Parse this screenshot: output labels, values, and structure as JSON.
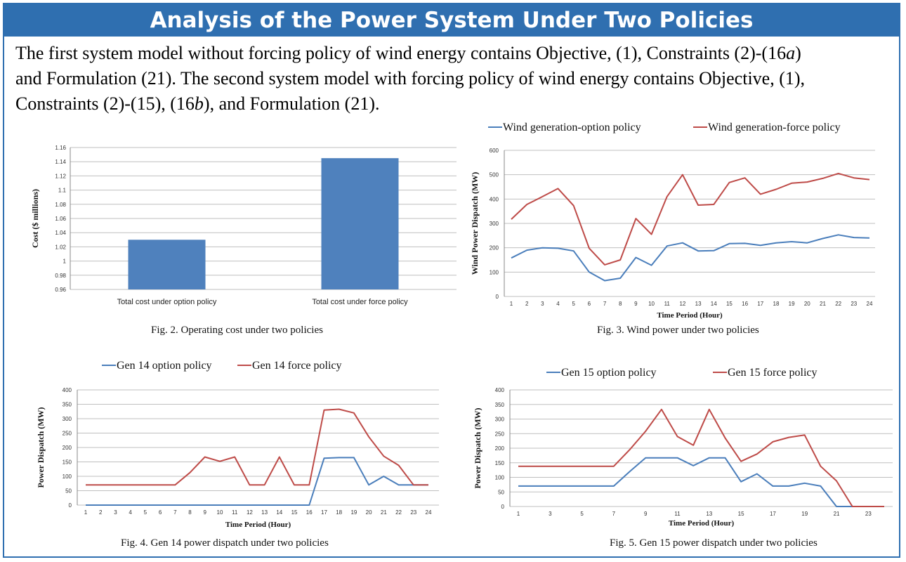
{
  "banner": {
    "title": "Analysis of the Power System Under Two Policies"
  },
  "intro": {
    "line1a": "The first system model without forcing policy of wind energy contains Objective, (1), Constraints (2)-(16",
    "line1sym": "a",
    "line1b": ")",
    "line2a": "and Formulation (21).  The second system model with forcing policy of wind energy contains Objective, (1),",
    "line3a": "Constraints (2)-(15), (16",
    "line3sym": "b",
    "line3b": "), and Formulation (21)."
  },
  "captions": {
    "fig2": "Fig. 2.  Operating cost under two policies",
    "fig3": "Fig. 3.  Wind power under two policies",
    "fig4": "Fig. 4. Gen 14 power dispatch under two policies",
    "fig5": "Fig. 5. Gen 15 power dispatch under two policies"
  },
  "colors": {
    "blue": "#4a7ebb",
    "red": "#be4b48",
    "bar": "#4f81bd",
    "grid": "#bfbfbf",
    "frame": "#2f6fb0"
  },
  "chart_data": [
    {
      "id": "fig2",
      "type": "bar",
      "categories": [
        "Total cost under option policy",
        "Total cost under force policy"
      ],
      "values": [
        1.03,
        1.145
      ],
      "ylabel": "Cost ($ millions)",
      "ylim": [
        0.96,
        1.16
      ],
      "yticks": [
        "0.96",
        "0.98",
        "1",
        "1.02",
        "1.04",
        "1.06",
        "1.08",
        "1.1",
        "1.12",
        "1.14",
        "1.16"
      ],
      "grid": true
    },
    {
      "id": "fig3",
      "type": "line",
      "x": [
        1,
        2,
        3,
        4,
        5,
        6,
        7,
        8,
        9,
        10,
        11,
        12,
        13,
        14,
        15,
        16,
        17,
        18,
        19,
        20,
        21,
        22,
        23,
        24
      ],
      "xlabel": "Time Period (Hour)",
      "ylabel": "Wind Power Dispatch (MW)",
      "ylim": [
        0,
        600
      ],
      "yticks": [
        "0",
        "100",
        "200",
        "300",
        "400",
        "500",
        "600"
      ],
      "xticks": [
        "1",
        "2",
        "3",
        "4",
        "5",
        "6",
        "7",
        "8",
        "9",
        "10",
        "11",
        "12",
        "13",
        "14",
        "15",
        "16",
        "17",
        "18",
        "19",
        "20",
        "21",
        "22",
        "23",
        "24"
      ],
      "legend_position": "top",
      "series": [
        {
          "name": "Wind generation-option policy",
          "color": "#4a7ebb",
          "values": [
            158,
            190,
            200,
            198,
            187,
            100,
            65,
            75,
            160,
            128,
            207,
            220,
            187,
            188,
            217,
            218,
            210,
            220,
            225,
            220,
            238,
            253,
            242,
            240
          ]
        },
        {
          "name": "Wind generation-force policy",
          "color": "#be4b48",
          "values": [
            317,
            378,
            410,
            443,
            373,
            198,
            130,
            150,
            320,
            255,
            410,
            500,
            375,
            378,
            468,
            487,
            420,
            440,
            465,
            470,
            485,
            505,
            487,
            480
          ]
        }
      ]
    },
    {
      "id": "fig4",
      "type": "line",
      "x": [
        1,
        2,
        3,
        4,
        5,
        6,
        7,
        8,
        9,
        10,
        11,
        12,
        13,
        14,
        15,
        16,
        17,
        18,
        19,
        20,
        21,
        22,
        23,
        24
      ],
      "xlabel": "Time Period (Hour)",
      "ylabel": "Power Dispatch (MW)",
      "ylim": [
        0,
        400
      ],
      "yticks": [
        "0",
        "50",
        "100",
        "150",
        "200",
        "250",
        "300",
        "350",
        "400"
      ],
      "xticks": [
        "1",
        "2",
        "3",
        "4",
        "5",
        "6",
        "7",
        "8",
        "9",
        "10",
        "11",
        "12",
        "13",
        "14",
        "15",
        "16",
        "17",
        "18",
        "19",
        "20",
        "21",
        "22",
        "23",
        "24"
      ],
      "legend_position": "top",
      "series": [
        {
          "name": "Gen 14 option policy",
          "color": "#4a7ebb",
          "values": [
            0,
            0,
            0,
            0,
            0,
            0,
            0,
            0,
            0,
            0,
            0,
            0,
            0,
            0,
            0,
            0,
            163,
            165,
            165,
            70,
            100,
            70,
            70,
            70
          ]
        },
        {
          "name": "Gen 14 force policy",
          "color": "#be4b48",
          "values": [
            70,
            70,
            70,
            70,
            70,
            70,
            70,
            113,
            167,
            152,
            167,
            70,
            70,
            167,
            70,
            70,
            330,
            333,
            320,
            237,
            170,
            138,
            70,
            70
          ]
        }
      ]
    },
    {
      "id": "fig5",
      "type": "line",
      "x": [
        1,
        2,
        3,
        4,
        5,
        6,
        7,
        8,
        9,
        10,
        11,
        12,
        13,
        14,
        15,
        16,
        17,
        18,
        19,
        20,
        21,
        22,
        23,
        24
      ],
      "xlabel": "Time Period (Hour)",
      "ylabel": "Power Dispatch (MW)",
      "ylim": [
        0,
        400
      ],
      "yticks": [
        "0",
        "50",
        "100",
        "150",
        "200",
        "250",
        "300",
        "350",
        "400"
      ],
      "xticks": [
        "1",
        "3",
        "5",
        "7",
        "9",
        "11",
        "13",
        "15",
        "17",
        "19",
        "21",
        "23"
      ],
      "legend_position": "top",
      "series": [
        {
          "name": "Gen 15 option policy",
          "color": "#4a7ebb",
          "values": [
            70,
            70,
            70,
            70,
            70,
            70,
            70,
            120,
            167,
            167,
            167,
            140,
            167,
            167,
            85,
            112,
            70,
            70,
            80,
            70,
            0,
            0,
            0,
            0
          ]
        },
        {
          "name": "Gen 15 force policy",
          "color": "#be4b48",
          "values": [
            138,
            138,
            138,
            138,
            138,
            138,
            138,
            195,
            258,
            333,
            240,
            210,
            333,
            235,
            155,
            180,
            222,
            237,
            245,
            138,
            88,
            0,
            0,
            0
          ]
        }
      ]
    }
  ]
}
